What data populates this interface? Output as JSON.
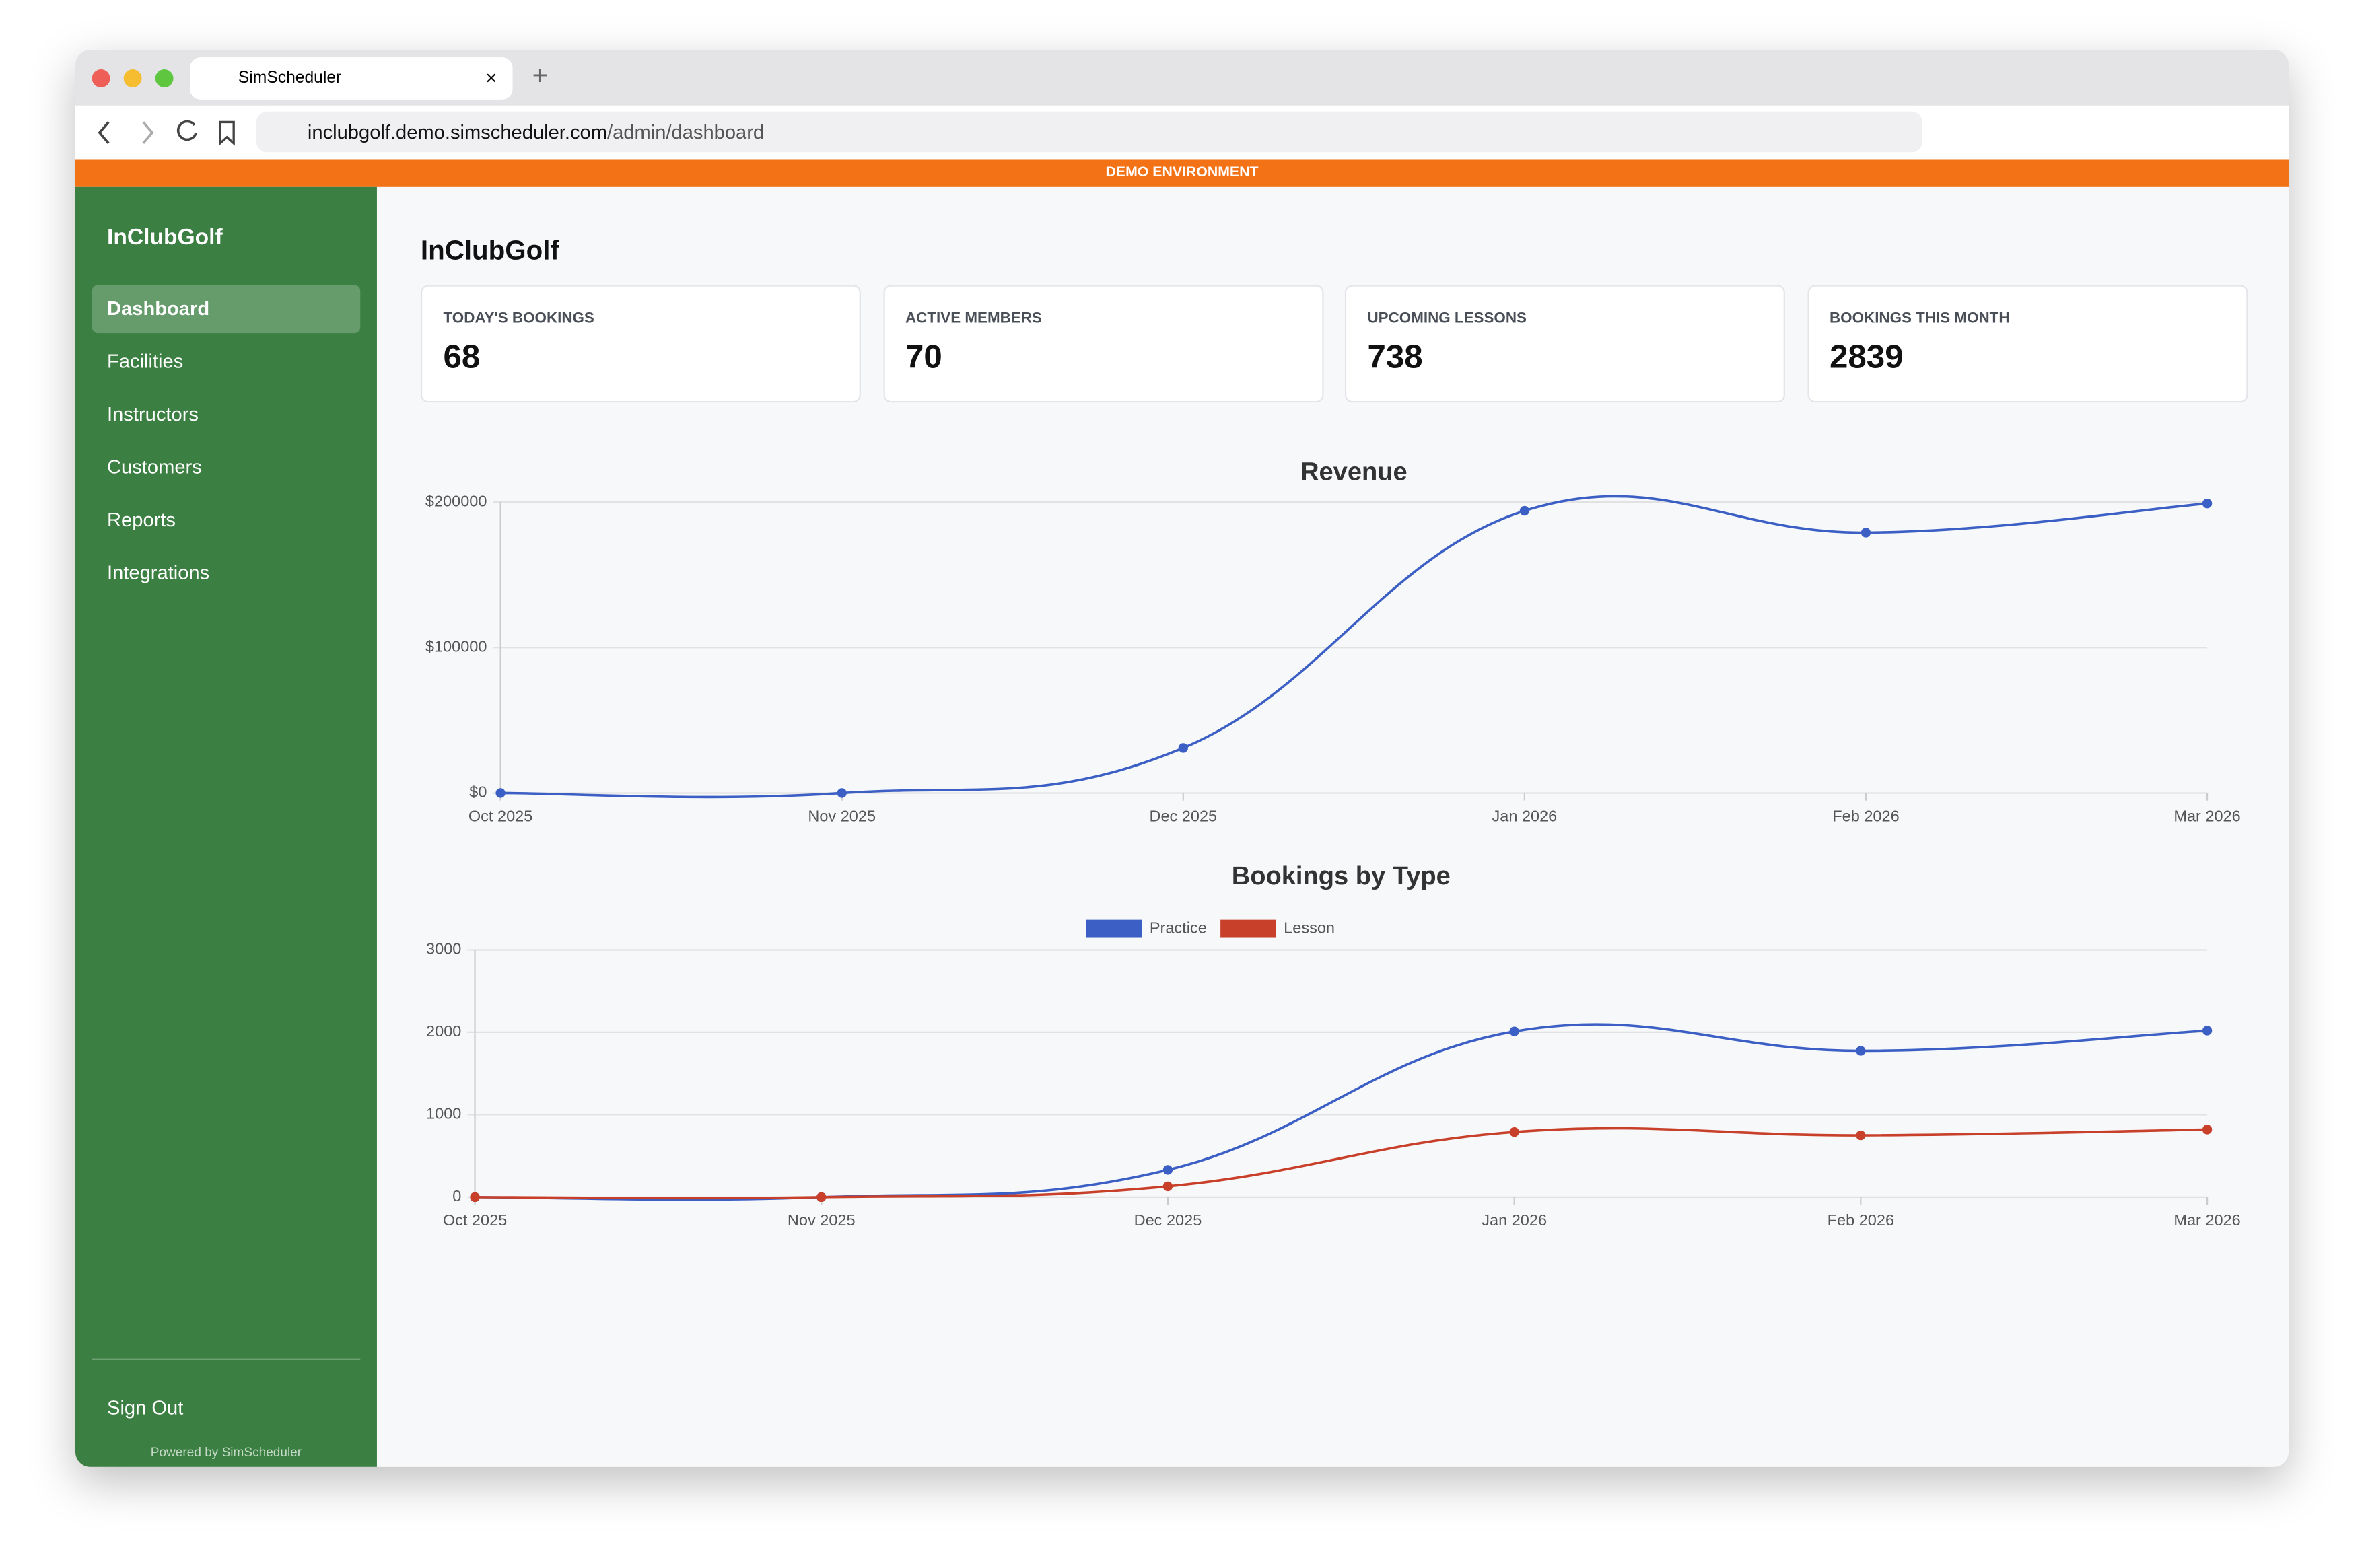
{
  "browser": {
    "tab_title": "SimScheduler",
    "url_host": "inclubgolf.demo.simscheduler.com",
    "url_path": "/admin/dashboard"
  },
  "banner": "DEMO ENVIRONMENT",
  "sidebar": {
    "brand": "InClubGolf",
    "nav": [
      "Dashboard",
      "Facilities",
      "Instructors",
      "Customers",
      "Reports",
      "Integrations"
    ],
    "sign_out": "Sign Out",
    "footer": "Powered by SimScheduler"
  },
  "header": {
    "title": "InClubGolf"
  },
  "stats": [
    {
      "label": "TODAY'S BOOKINGS",
      "value": 68
    },
    {
      "label": "ACTIVE MEMBERS",
      "value": 70
    },
    {
      "label": "UPCOMING LESSONS",
      "value": 738
    },
    {
      "label": "BOOKINGS THIS MONTH",
      "value": 2839
    }
  ],
  "charts": [
    {
      "type": "line",
      "title": "Revenue",
      "categories": [
        "Oct 2025",
        "Nov 2025",
        "Dec 2025",
        "Jan 2026",
        "Feb 2026",
        "Mar 2026"
      ],
      "series": [
        {
          "color": "#3b5fc4",
          "values": [
            0,
            0,
            31000,
            194000,
            179000,
            199000
          ]
        }
      ],
      "ylim": [
        0,
        200000
      ],
      "yticks": [
        {
          "value": 0,
          "label": "$0"
        },
        {
          "value": 100000,
          "label": "$100000"
        },
        {
          "value": 200000,
          "label": "$200000"
        }
      ],
      "grid": true
    },
    {
      "type": "line",
      "title": "Bookings by Type",
      "categories": [
        "Oct 2025",
        "Nov 2025",
        "Dec 2025",
        "Jan 2026",
        "Feb 2026",
        "Mar 2026"
      ],
      "series": [
        {
          "name": "Practice",
          "color": "#3b5fc4",
          "values": [
            0,
            0,
            330,
            2010,
            1775,
            2020
          ]
        },
        {
          "name": "Lesson",
          "color": "#c8402a",
          "values": [
            0,
            0,
            130,
            790,
            750,
            820
          ]
        }
      ],
      "ylim": [
        0,
        3000
      ],
      "yticks": [
        0,
        1000,
        2000,
        3000
      ],
      "grid": true,
      "legend": "top"
    }
  ]
}
